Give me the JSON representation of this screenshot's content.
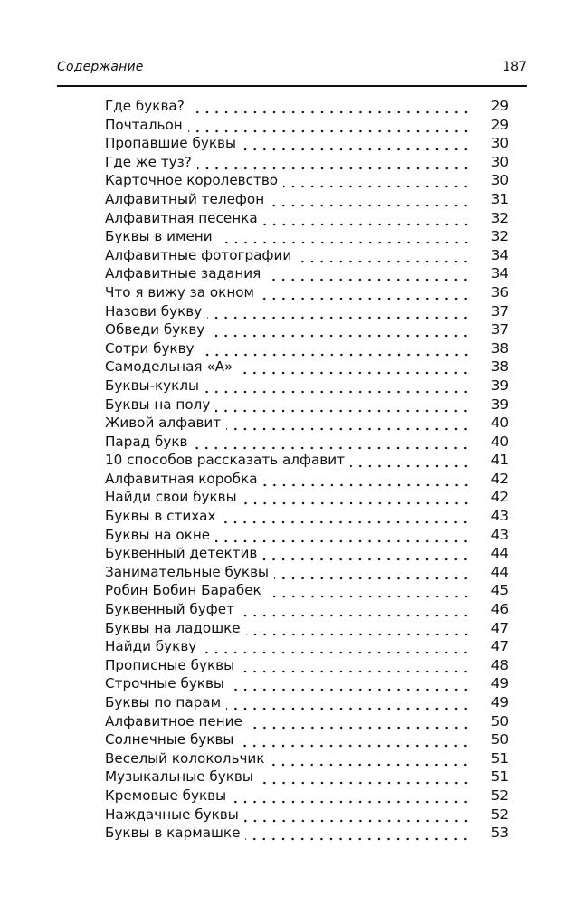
{
  "header": {
    "section_title": "Содержание",
    "page_number": "187"
  },
  "entries": [
    {
      "title": "Где буква?",
      "page": "29"
    },
    {
      "title": "Почтальон",
      "page": "29"
    },
    {
      "title": "Пропавшие буквы",
      "page": "30"
    },
    {
      "title": "Где же туз?",
      "page": "30"
    },
    {
      "title": "Карточное королевство",
      "page": "30"
    },
    {
      "title": "Алфавитный телефон",
      "page": "31"
    },
    {
      "title": "Алфавитная песенка",
      "page": "32"
    },
    {
      "title": "Буквы в имени",
      "page": "32"
    },
    {
      "title": "Алфавитные фотографии",
      "page": "34"
    },
    {
      "title": "Алфавитные задания",
      "page": "34"
    },
    {
      "title": "Что я вижу за окном",
      "page": "36"
    },
    {
      "title": "Назови букву",
      "page": "37"
    },
    {
      "title": "Обведи букву",
      "page": "37"
    },
    {
      "title": "Сотри букву",
      "page": "38"
    },
    {
      "title": "Самодельная «А»",
      "page": "38"
    },
    {
      "title": "Буквы-куклы",
      "page": "39"
    },
    {
      "title": "Буквы на полу",
      "page": "39"
    },
    {
      "title": "Живой алфавит",
      "page": "40"
    },
    {
      "title": "Парад букв",
      "page": "40"
    },
    {
      "title": "10 способов рассказать алфавит",
      "page": "41"
    },
    {
      "title": "Алфавитная коробка",
      "page": "42"
    },
    {
      "title": "Найди свои буквы",
      "page": "42"
    },
    {
      "title": "Буквы в стихах",
      "page": "43"
    },
    {
      "title": "Буквы на окне",
      "page": "43"
    },
    {
      "title": "Буквенный детектив",
      "page": "44"
    },
    {
      "title": "Занимательные буквы",
      "page": "44"
    },
    {
      "title": "Робин Бобин Барабек",
      "page": "45"
    },
    {
      "title": "Буквенный буфет",
      "page": "46"
    },
    {
      "title": "Буквы на ладошке",
      "page": "47"
    },
    {
      "title": "Найди букву",
      "page": "47"
    },
    {
      "title": "Прописные буквы",
      "page": "48"
    },
    {
      "title": "Строчные буквы",
      "page": "49"
    },
    {
      "title": "Буквы по парам",
      "page": "49"
    },
    {
      "title": "Алфавитное пение",
      "page": "50"
    },
    {
      "title": "Солнечные буквы",
      "page": "50"
    },
    {
      "title": "Веселый колокольчик",
      "page": "51"
    },
    {
      "title": "Музыкальные буквы",
      "page": "51"
    },
    {
      "title": "Кремовые буквы",
      "page": "52"
    },
    {
      "title": "Наждачные буквы",
      "page": "52"
    },
    {
      "title": "Буквы в кармашке",
      "page": "53"
    }
  ]
}
